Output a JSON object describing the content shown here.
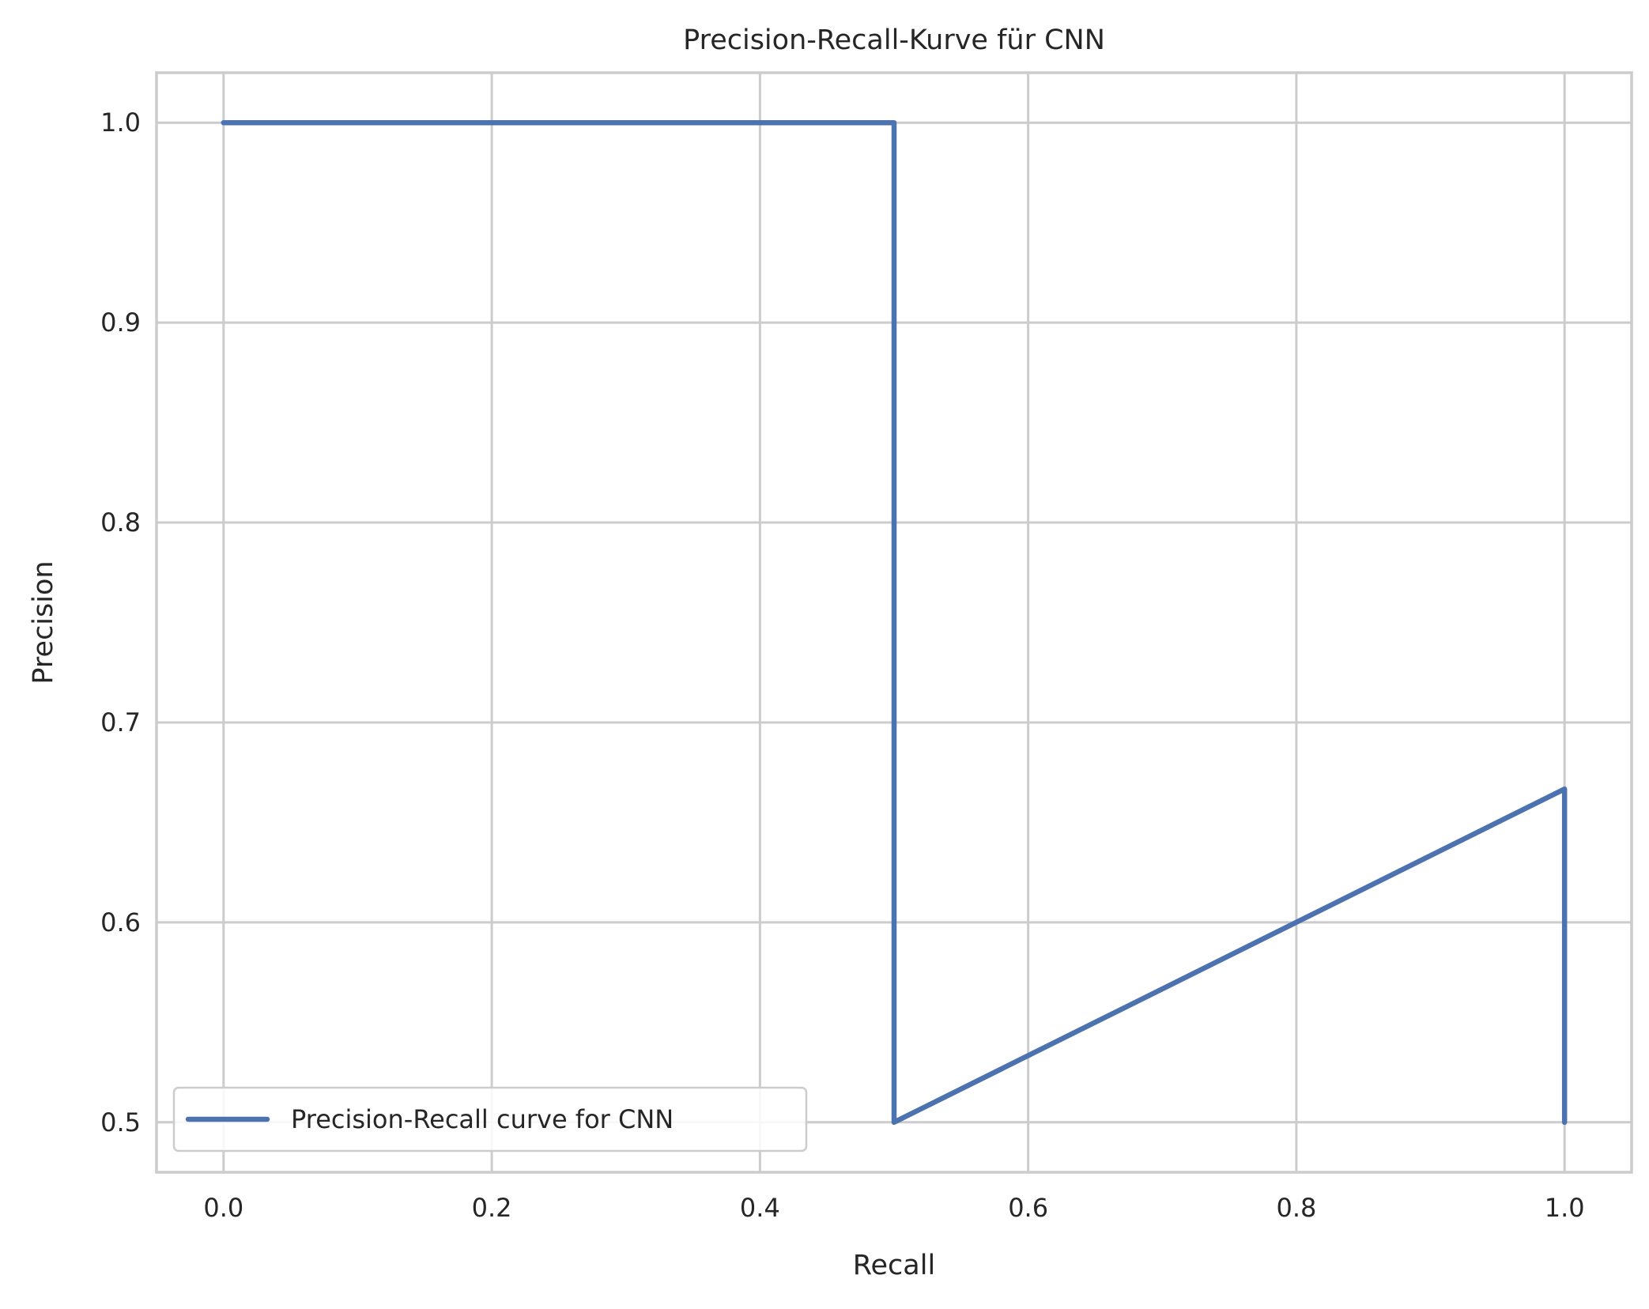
{
  "chart_data": {
    "type": "line",
    "title": "Precision-Recall-Kurve für CNN",
    "xlabel": "Recall",
    "ylabel": "Precision",
    "xlim": [
      -0.05,
      1.05
    ],
    "ylim": [
      0.475,
      1.025
    ],
    "xticks": [
      0.0,
      0.2,
      0.4,
      0.6,
      0.8,
      1.0
    ],
    "xtick_labels": [
      "0.0",
      "0.2",
      "0.4",
      "0.6",
      "0.8",
      "1.0"
    ],
    "yticks": [
      0.5,
      0.6,
      0.7,
      0.8,
      0.9,
      1.0
    ],
    "ytick_labels": [
      "0.5",
      "0.6",
      "0.7",
      "0.8",
      "0.9",
      "1.0"
    ],
    "grid": true,
    "legend_position": "lower-left",
    "series": [
      {
        "name": "Precision-Recall curve for CNN",
        "color": "#4c72b0",
        "x": [
          0.0,
          0.5,
          0.5,
          1.0,
          1.0
        ],
        "y": [
          1.0,
          1.0,
          0.5,
          0.6667,
          0.5
        ]
      }
    ]
  },
  "colors": {
    "grid": "#cccccc",
    "spine": "#cccccc",
    "text": "#262626",
    "background": "#ffffff"
  }
}
